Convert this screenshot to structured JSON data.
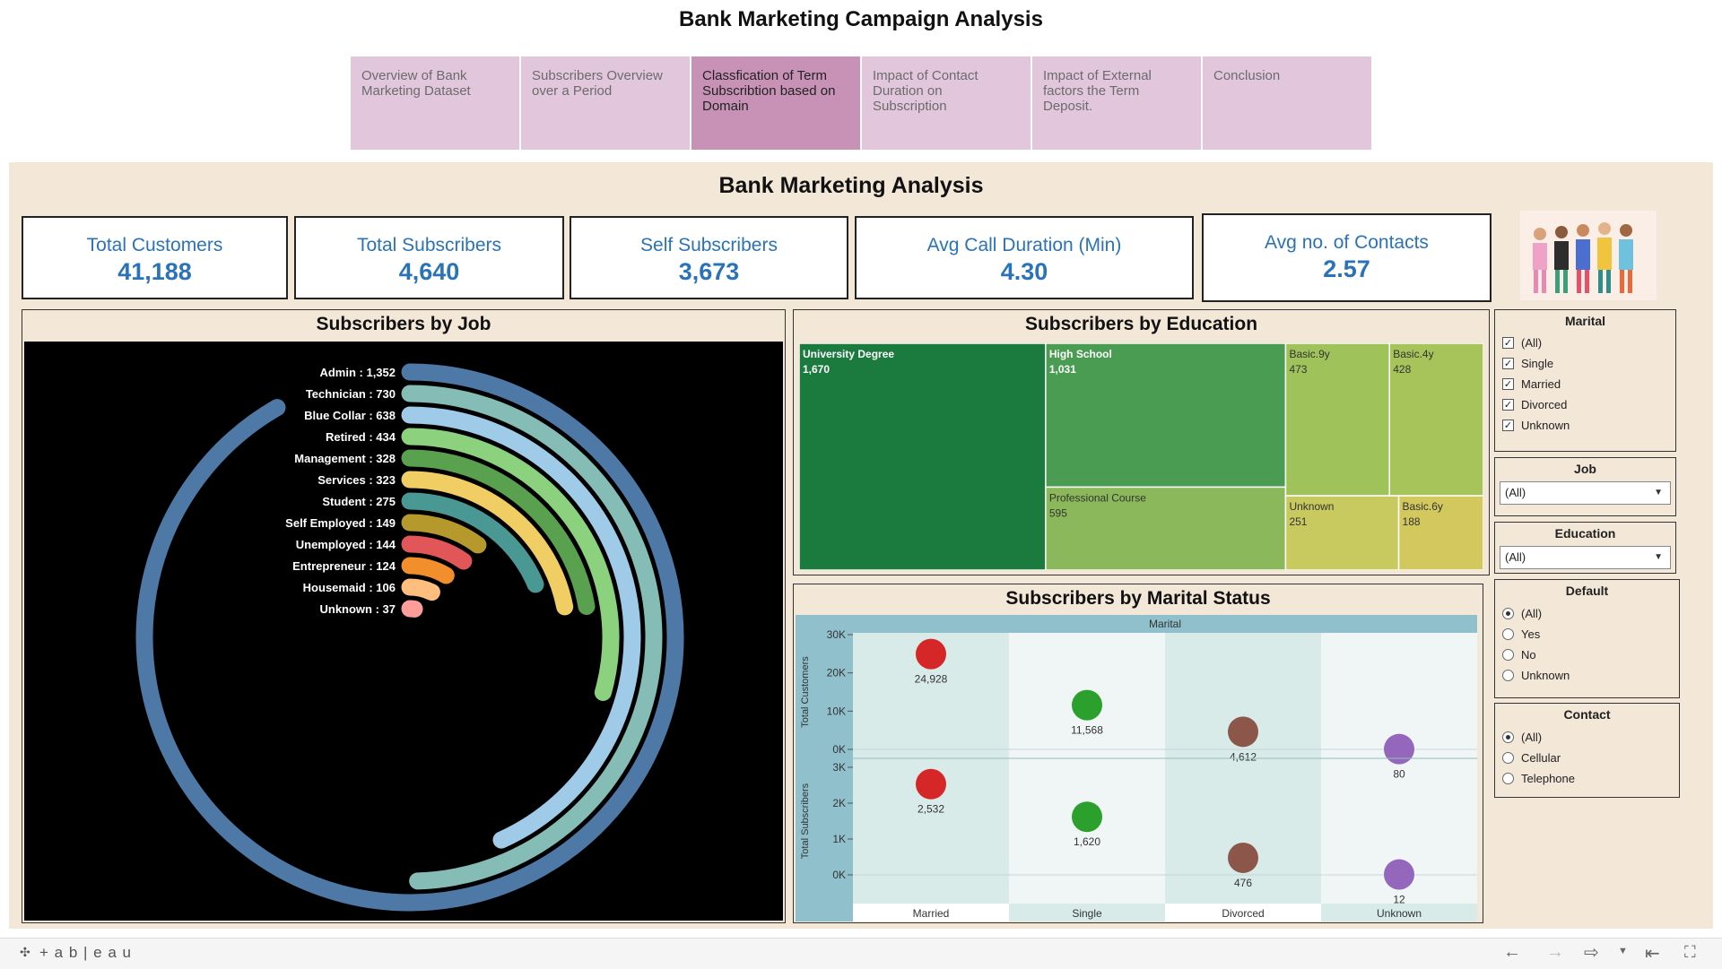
{
  "header": {
    "title": "Bank Marketing Campaign Analysis"
  },
  "tabs": [
    {
      "label": "Overview of Bank Marketing Dataset"
    },
    {
      "label": "Subscribers Overview over a Period"
    },
    {
      "label": "Classfication of Term Subscribtion based on Domain"
    },
    {
      "label": "Impact of Contact Duration on Subscription"
    },
    {
      "label": "Impact of External factors  the Term Deposit."
    },
    {
      "label": "Conclusion"
    }
  ],
  "dashboard": {
    "title": "Bank Marketing Analysis"
  },
  "kpis": [
    {
      "label": "Total Customers",
      "value": "41,188"
    },
    {
      "label": "Total Subscribers",
      "value": "4,640"
    },
    {
      "label": "Self Subscribers",
      "value": "3,673"
    },
    {
      "label": "Avg Call Duration (Min)",
      "value": "4.30"
    },
    {
      "label": "Avg no. of Contacts",
      "value": "2.57"
    }
  ],
  "colors": {
    "kpi_text": "#2a73b8",
    "tab_bg": "#e2c7dc",
    "tab_active": "#c792b6",
    "panel_bg": "#f3e7d8"
  },
  "chart_data": [
    {
      "type": "radial-bar",
      "title": "Subscribers by Job",
      "categories": [
        "Admin",
        "Technician",
        "Blue Collar",
        "Retired",
        "Management",
        "Services",
        "Student",
        "Self Employed",
        "Unemployed",
        "Entrepreneur",
        "Housemaid",
        "Unknown"
      ],
      "values": [
        1352,
        730,
        638,
        434,
        328,
        323,
        275,
        149,
        144,
        124,
        106,
        37
      ],
      "colors": [
        "#4e79a7",
        "#86bcb6",
        "#a0cbe8",
        "#8cd17d",
        "#59a14f",
        "#f1ce63",
        "#499894",
        "#b6992d",
        "#e15759",
        "#f28e2b",
        "#ffbe7d",
        "#ff9d9a"
      ]
    },
    {
      "type": "treemap",
      "title": "Subscribers by Education",
      "categories": [
        "University Degree",
        "High School",
        "Professional Course",
        "Basic.9y",
        "Basic.4y",
        "Unknown",
        "Basic.6y"
      ],
      "values": [
        1670,
        1031,
        595,
        473,
        428,
        251,
        188
      ],
      "colors": [
        "#1b7a3e",
        "#4a9c52",
        "#8bb85a",
        "#9fc25a",
        "#a7c45a",
        "#c8c95f",
        "#d2c85e"
      ]
    },
    {
      "type": "scatter",
      "title": "Subscribers by Marital Status",
      "column_header": "Marital",
      "categories": [
        "Married",
        "Single",
        "Divorced",
        "Unknown"
      ],
      "series": [
        {
          "name": "Total Customers",
          "values": [
            24928,
            11568,
            4612,
            80
          ]
        },
        {
          "name": "Total Subscribers",
          "values": [
            2532,
            1620,
            476,
            12
          ]
        }
      ],
      "point_labels": [
        [
          "24,928",
          "11,568",
          "4,612",
          "80"
        ],
        [
          "2,532",
          "1,620",
          "476",
          "12"
        ]
      ],
      "colors": [
        "#d62728",
        "#2ca02c",
        "#8c564b",
        "#9467bd"
      ],
      "axes": [
        {
          "label": "Total Customers",
          "ticks": [
            "30K",
            "20K",
            "10K",
            "0K"
          ],
          "ylim": [
            0,
            30000
          ]
        },
        {
          "label": "Total Subscribers",
          "ticks": [
            "3K",
            "2K",
            "1K",
            "0K"
          ],
          "ylim": [
            0,
            3000
          ]
        }
      ]
    }
  ],
  "filters": {
    "marital": {
      "title": "Marital",
      "options": [
        "(All)",
        "Single",
        "Married",
        "Divorced",
        "Unknown"
      ]
    },
    "job": {
      "title": "Job",
      "value": "(All)"
    },
    "education": {
      "title": "Education",
      "value": "(All)"
    },
    "default": {
      "title": "Default",
      "options": [
        "(All)",
        "Yes",
        "No",
        "Unknown"
      ],
      "selected": "(All)"
    },
    "contact": {
      "title": "Contact",
      "options": [
        "(All)",
        "Cellular",
        "Telephone"
      ],
      "selected": "(All)"
    }
  },
  "footer": {
    "brand": "+ a b | e a u"
  }
}
